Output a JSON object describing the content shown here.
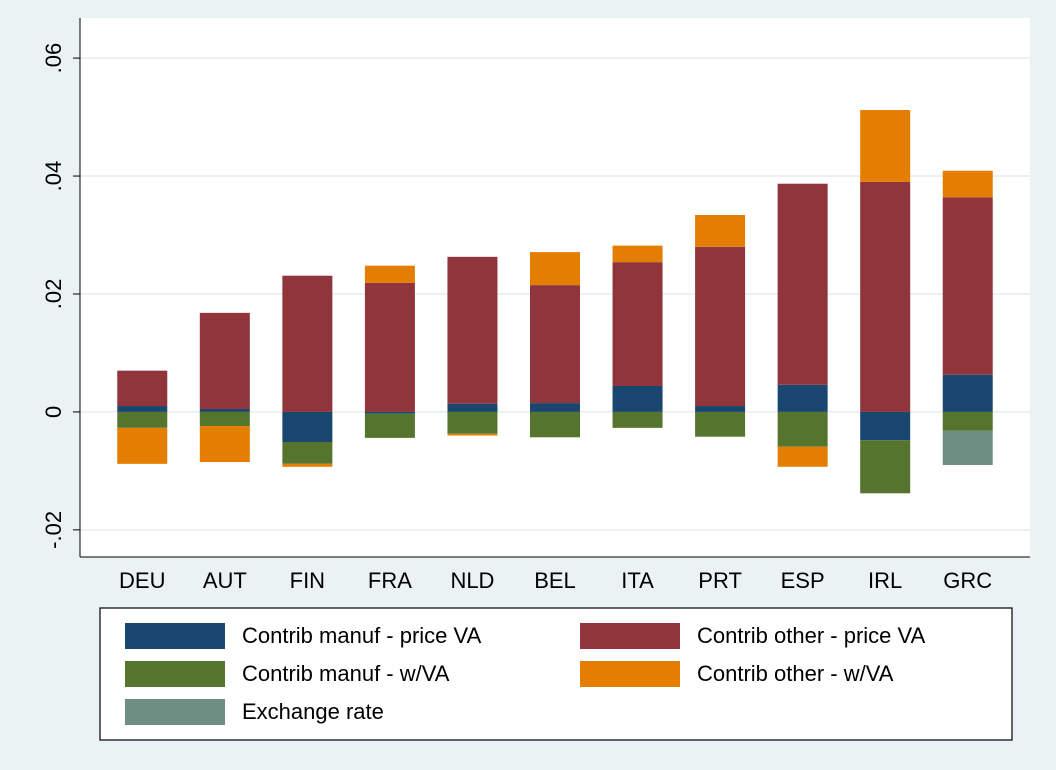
{
  "chart_data": {
    "type": "stacked_bar",
    "categories": [
      "DEU",
      "AUT",
      "FIN",
      "FRA",
      "NLD",
      "BEL",
      "ITA",
      "PRT",
      "ESP",
      "IRL",
      "GRC"
    ],
    "series": [
      {
        "name": "Contrib manuf - price VA",
        "color": "#1a476f",
        "values": [
          0.001,
          0.0005,
          -0.0051,
          -0.0003,
          0.0014,
          0.0015,
          0.0044,
          0.001,
          0.0046,
          -0.0048,
          0.0063
        ]
      },
      {
        "name": "Contrib other - price VA",
        "color": "#90353b",
        "values": [
          0.006,
          0.0163,
          0.0231,
          0.0219,
          0.0249,
          0.02,
          0.021,
          0.027,
          0.0341,
          0.039,
          0.0301
        ]
      },
      {
        "name": "Contrib manuf - w/VA",
        "color": "#55752f",
        "values": [
          -0.0027,
          -0.0024,
          -0.0037,
          -0.0041,
          -0.0037,
          -0.0043,
          -0.0027,
          -0.0042,
          -0.0059,
          -0.009,
          -0.0032
        ]
      },
      {
        "name": "Contrib other - w/VA",
        "color": "#e37e00",
        "values": [
          -0.0061,
          -0.0061,
          -0.0005,
          0.0029,
          -0.0003,
          0.0056,
          0.0028,
          0.0054,
          -0.0034,
          0.0122,
          0.0045
        ]
      },
      {
        "name": "Exchange rate",
        "color": "#6e8e84",
        "values": [
          0,
          0,
          0,
          0,
          0,
          0,
          0,
          0,
          0,
          0,
          -0.0058
        ]
      }
    ],
    "ylim": [
      -0.0246,
      0.0668
    ],
    "yticks": [
      {
        "value": -0.02,
        "label": "-.02"
      },
      0,
      {
        "value": 0.02,
        "label": ".02"
      },
      {
        "value": 0.04,
        "label": ".04"
      },
      {
        "value": 0.06,
        "label": ".06"
      }
    ],
    "grid": true
  }
}
